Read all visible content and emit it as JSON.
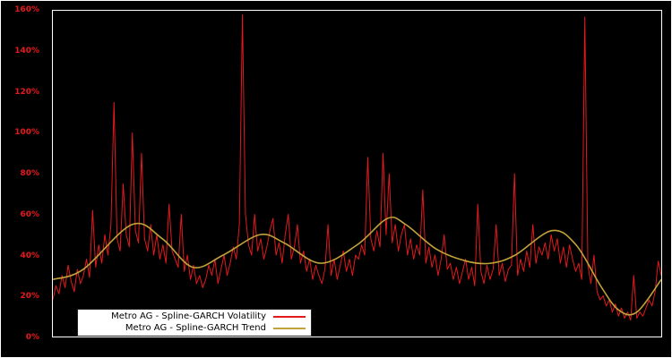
{
  "colors": {
    "background": "#000000",
    "frame": "#ffffff",
    "tick_label": "#e3191d",
    "legend_bg": "#ffffff",
    "legend_text": "#000000"
  },
  "chart_data": {
    "type": "line",
    "title": "",
    "xlabel": "",
    "ylabel": "",
    "ylim": [
      0,
      160
    ],
    "y_ticks": [
      "0%",
      "20%",
      "40%",
      "60%",
      "80%",
      "100%",
      "120%",
      "140%",
      "160%"
    ],
    "x_tick_labels": [],
    "grid": false,
    "legend_position": "inside-bottom-left",
    "series": [
      {
        "name": "Metro AG - Spline-GARCH Volatility",
        "color": "#e3191d",
        "unit": "%",
        "values": [
          18,
          25,
          21,
          30,
          24,
          35,
          27,
          22,
          33,
          26,
          30,
          38,
          29,
          62,
          34,
          45,
          36,
          50,
          40,
          55,
          115,
          48,
          42,
          75,
          50,
          44,
          100,
          52,
          46,
          90,
          48,
          42,
          55,
          40,
          50,
          38,
          45,
          36,
          65,
          42,
          38,
          34,
          60,
          32,
          40,
          28,
          35,
          26,
          30,
          24,
          28,
          35,
          30,
          38,
          26,
          33,
          40,
          30,
          36,
          44,
          38,
          55,
          158,
          60,
          45,
          40,
          60,
          42,
          48,
          38,
          44,
          52,
          58,
          40,
          46,
          36,
          50,
          60,
          38,
          44,
          55,
          36,
          42,
          32,
          38,
          28,
          35,
          30,
          26,
          33,
          55,
          30,
          38,
          28,
          35,
          42,
          32,
          38,
          30,
          40,
          38,
          45,
          40,
          88,
          48,
          42,
          52,
          44,
          90,
          50,
          80,
          46,
          55,
          42,
          50,
          55,
          40,
          48,
          38,
          45,
          40,
          72,
          36,
          44,
          34,
          40,
          30,
          38,
          50,
          33,
          36,
          28,
          34,
          26,
          32,
          38,
          28,
          34,
          25,
          65,
          32,
          26,
          35,
          28,
          33,
          55,
          30,
          36,
          27,
          33,
          35,
          80,
          30,
          38,
          32,
          42,
          34,
          55,
          36,
          44,
          40,
          46,
          38,
          50,
          42,
          48,
          36,
          44,
          34,
          45,
          38,
          32,
          36,
          28,
          157,
          35,
          26,
          40,
          22,
          18,
          20,
          15,
          18,
          12,
          16,
          10,
          14,
          9,
          12,
          8,
          30,
          9,
          12,
          10,
          14,
          18,
          15,
          22,
          37,
          30
        ]
      },
      {
        "name": "Metro AG - Spline-GARCH Trend",
        "color": "#c2a23a",
        "unit": "%",
        "x": [
          0,
          0.05,
          0.13,
          0.18,
          0.23,
          0.28,
          0.34,
          0.38,
          0.44,
          0.5,
          0.55,
          0.58,
          0.63,
          0.68,
          0.72,
          0.76,
          0.82,
          0.86,
          0.9,
          0.93,
          0.96,
          1.0
        ],
        "values": [
          28,
          33,
          55,
          48,
          34,
          40,
          50,
          46,
          36,
          45,
          58,
          55,
          43,
          37,
          36,
          40,
          52,
          45,
          25,
          13,
          12,
          28
        ]
      }
    ]
  }
}
